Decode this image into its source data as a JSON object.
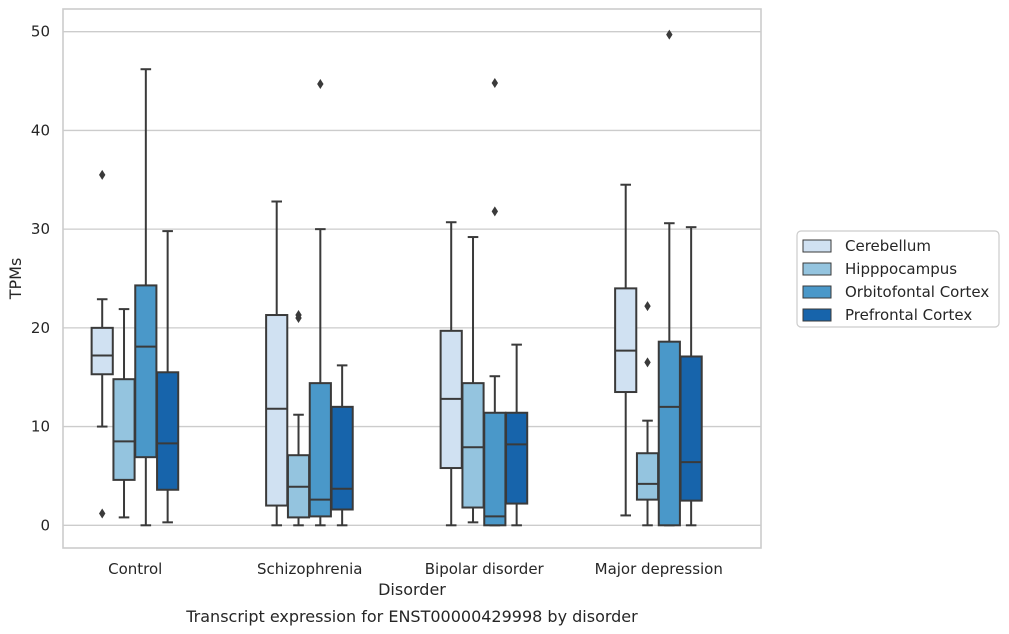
{
  "chart_data": {
    "type": "box",
    "title": "",
    "caption": "Transcript expression for ENST00000429998 by disorder",
    "xlabel": "Disorder",
    "ylabel": "TPMs",
    "ylim": [
      -2.3,
      52.3
    ],
    "yticks": [
      0,
      10,
      20,
      30,
      40,
      50
    ],
    "grid": "horizontal",
    "legend_position": "right",
    "categories": [
      "Control",
      "Schizophrenia",
      "Bipolar disorder",
      "Major depression"
    ],
    "series": [
      {
        "name": "Cerebellum",
        "color": "#d0e1f2",
        "boxes": [
          {
            "whislo": 10.0,
            "q1": 15.3,
            "med": 17.2,
            "q3": 20.0,
            "whishi": 22.9,
            "fliers": [
              35.5,
              1.2
            ]
          },
          {
            "whislo": 0.0,
            "q1": 2.0,
            "med": 11.8,
            "q3": 21.3,
            "whishi": 32.8,
            "fliers": []
          },
          {
            "whislo": 0.0,
            "q1": 5.8,
            "med": 12.8,
            "q3": 19.7,
            "whishi": 30.7,
            "fliers": []
          },
          {
            "whislo": 1.0,
            "q1": 13.5,
            "med": 17.7,
            "q3": 24.0,
            "whishi": 34.5,
            "fliers": []
          }
        ]
      },
      {
        "name": "Hipppocampus",
        "color": "#94c4df",
        "boxes": [
          {
            "whislo": 0.8,
            "q1": 4.6,
            "med": 8.5,
            "q3": 14.8,
            "whishi": 21.9,
            "fliers": []
          },
          {
            "whislo": 0.0,
            "q1": 0.8,
            "med": 3.9,
            "q3": 7.1,
            "whishi": 11.2,
            "fliers": [
              21.0,
              21.3
            ]
          },
          {
            "whislo": 0.3,
            "q1": 1.8,
            "med": 7.9,
            "q3": 14.4,
            "whishi": 29.2,
            "fliers": []
          },
          {
            "whislo": 0.0,
            "q1": 2.6,
            "med": 4.2,
            "q3": 7.3,
            "whishi": 10.6,
            "fliers": [
              16.5,
              22.2
            ]
          }
        ]
      },
      {
        "name": "Orbitofontal Cortex",
        "color": "#4a98c9",
        "boxes": [
          {
            "whislo": 0.0,
            "q1": 6.9,
            "med": 18.1,
            "q3": 24.3,
            "whishi": 46.2,
            "fliers": []
          },
          {
            "whislo": 0.0,
            "q1": 0.9,
            "med": 2.6,
            "q3": 14.4,
            "whishi": 30.0,
            "fliers": [
              44.7
            ]
          },
          {
            "whislo": 0.0,
            "q1": 0.0,
            "med": 0.9,
            "q3": 11.4,
            "whishi": 15.1,
            "fliers": [
              31.8,
              44.8
            ]
          },
          {
            "whislo": 0.0,
            "q1": 0.0,
            "med": 12.0,
            "q3": 18.6,
            "whishi": 30.6,
            "fliers": [
              49.7
            ]
          }
        ]
      },
      {
        "name": "Prefrontal Cortex",
        "color": "#1764ab",
        "boxes": [
          {
            "whislo": 0.3,
            "q1": 3.6,
            "med": 8.3,
            "q3": 15.5,
            "whishi": 29.8,
            "fliers": []
          },
          {
            "whislo": 0.0,
            "q1": 1.6,
            "med": 3.7,
            "q3": 12.0,
            "whishi": 16.2,
            "fliers": []
          },
          {
            "whislo": 0.0,
            "q1": 2.2,
            "med": 8.2,
            "q3": 11.4,
            "whishi": 18.3,
            "fliers": []
          },
          {
            "whislo": 0.0,
            "q1": 2.5,
            "med": 6.4,
            "q3": 17.1,
            "whishi": 30.2,
            "fliers": []
          }
        ]
      }
    ]
  }
}
